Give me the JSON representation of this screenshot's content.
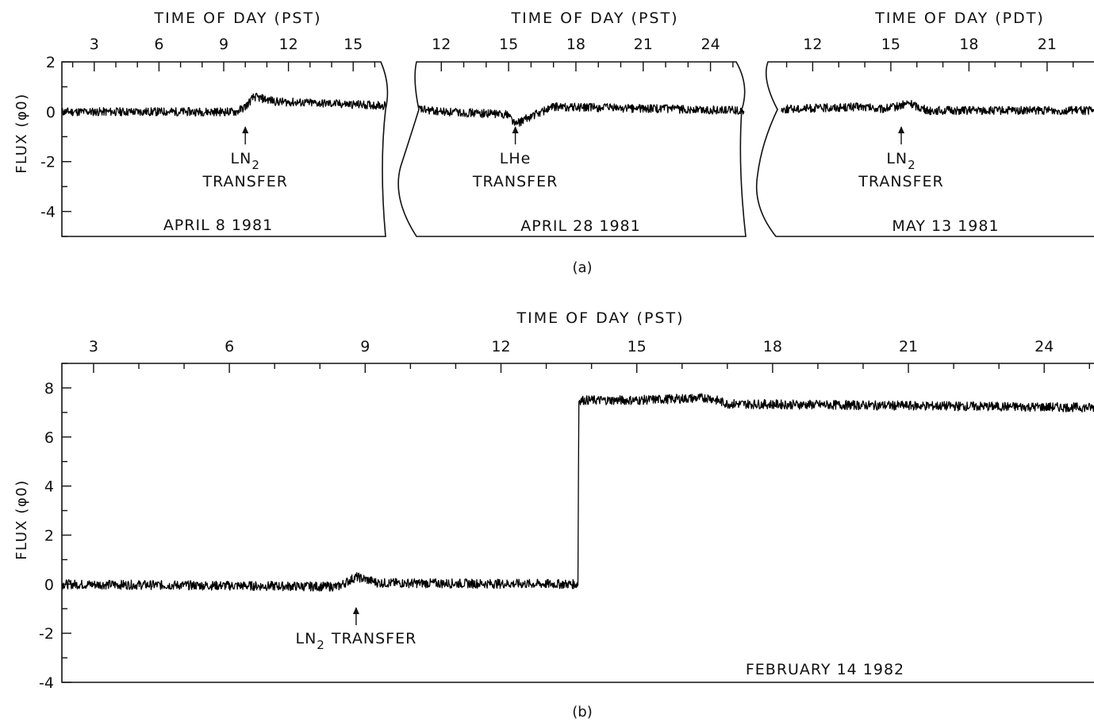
{
  "chart_data": [
    {
      "type": "line",
      "panel": "(a)",
      "xlabel": "TIME OF DAY (PST)",
      "ylabel": "FLUX (φ0)",
      "xticks": [
        3,
        6,
        9,
        12,
        15
      ],
      "xlim": [
        1.5,
        16.5
      ],
      "ylim": [
        -5,
        2
      ],
      "yticks": [
        2,
        0,
        -2,
        -4
      ],
      "date": "APRIL 8 1981",
      "annotation": {
        "x": 10,
        "line1": "LN2",
        "line2": "TRANSFER"
      },
      "series": [
        {
          "x": [
            1.5,
            9.6,
            10.0,
            10.4,
            11.5,
            16.5
          ],
          "y": [
            0,
            0,
            0.2,
            0.6,
            0.4,
            0.25
          ]
        }
      ]
    },
    {
      "type": "line",
      "panel": "(a)",
      "xlabel": "TIME OF DAY (PST)",
      "xticks": [
        12,
        15,
        18,
        21,
        24
      ],
      "xlim": [
        11,
        25.5
      ],
      "ylim": [
        -5,
        2
      ],
      "date": "APRIL 28 1981",
      "annotation": {
        "x": 15.3,
        "line1": "LHe",
        "line2": "TRANSFER"
      },
      "series": [
        {
          "x": [
            11,
            12,
            15.0,
            15.3,
            16.2,
            17.0,
            25.5
          ],
          "y": [
            0.1,
            0.0,
            -0.1,
            -0.5,
            -0.1,
            0.2,
            0.05
          ]
        }
      ]
    },
    {
      "type": "line",
      "panel": "(a)",
      "xlabel": "TIME OF DAY (PDT)",
      "xticks": [
        12,
        15,
        18,
        21
      ],
      "xlim": [
        10.8,
        22.8
      ],
      "ylim": [
        -5,
        2
      ],
      "date": "MAY 13 1981",
      "annotation": {
        "x": 15.4,
        "line1": "LN2",
        "line2": "TRANSFER"
      },
      "series": [
        {
          "x": [
            10.8,
            13.8,
            14.6,
            15.2,
            15.7,
            16.4,
            22.8
          ],
          "y": [
            0.1,
            0.2,
            0.1,
            0.2,
            0.35,
            0.05,
            0.05
          ]
        }
      ]
    },
    {
      "type": "line",
      "panel": "(b)",
      "xlabel": "TIME OF DAY (PST)",
      "ylabel": "FLUX (φ0)",
      "xticks": [
        3,
        6,
        9,
        12,
        15,
        18,
        21,
        24
      ],
      "xlim": [
        2.3,
        25.1
      ],
      "ylim": [
        -4,
        9
      ],
      "yticks": [
        8,
        6,
        4,
        2,
        0,
        -2,
        -4
      ],
      "date": "FEBRUARY 14 1982",
      "annotation": {
        "x": 8.8,
        "text": "LN2 TRANSFER"
      },
      "series": [
        {
          "x": [
            2.3,
            8.4,
            8.8,
            9.3,
            13.7,
            13.72,
            15.0,
            16.6,
            17.0,
            25.1
          ],
          "y": [
            0,
            -0.1,
            0.3,
            0.05,
            0,
            7.5,
            7.5,
            7.6,
            7.35,
            7.2
          ]
        }
      ]
    }
  ],
  "captions": {
    "a": "(a)",
    "b": "(b)"
  },
  "annot": {
    "ln": "LN",
    "sub2": "2",
    "lhe": "LHe",
    "transfer": "TRANSFER",
    "ln_transfer": "TRANSFER"
  },
  "colors": {
    "ink": "#111111",
    "background": "#ffffff"
  }
}
